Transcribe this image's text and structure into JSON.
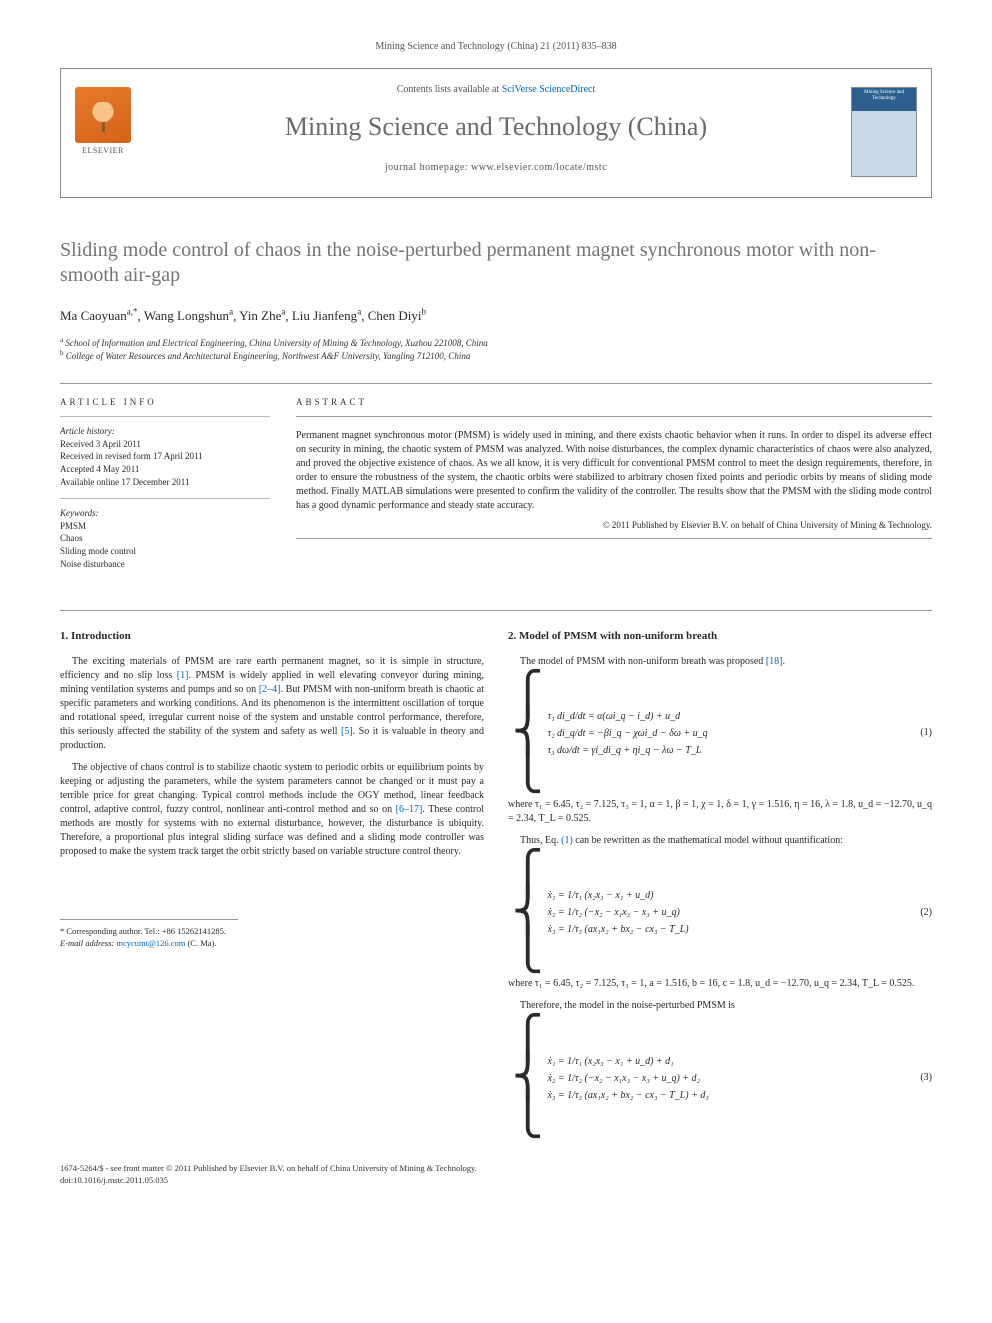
{
  "journal_ref": "Mining Science and Technology (China) 21 (2011) 835–838",
  "header": {
    "contents_line_pre": "Contents lists available at ",
    "contents_link": "SciVerse ScienceDirect",
    "journal_title": "Mining Science and Technology (China)",
    "homepage_pre": "journal homepage: ",
    "homepage_url": "www.elsevier.com/locate/mstc",
    "publisher_label": "ELSEVIER",
    "cover_label": "Mining Science and Technology"
  },
  "article": {
    "title": "Sliding mode control of chaos in the noise-perturbed permanent magnet synchronous motor with non-smooth air-gap",
    "authors_html": "Ma Caoyuan",
    "authors": [
      {
        "name": "Ma Caoyuan",
        "sup": "a,*"
      },
      {
        "name": "Wang Longshun",
        "sup": "a"
      },
      {
        "name": "Yin Zhe",
        "sup": "a"
      },
      {
        "name": "Liu Jianfeng",
        "sup": "a"
      },
      {
        "name": "Chen Diyi",
        "sup": "b"
      }
    ],
    "affiliations": [
      {
        "sup": "a",
        "text": "School of Information and Electrical Engineering, China University of Mining & Technology, Xuzhou 221008, China"
      },
      {
        "sup": "b",
        "text": "College of Water Resources and Architectural Engineering, Northwest A&F University, Yangling 712100, China"
      }
    ]
  },
  "info": {
    "label": "ARTICLE INFO",
    "history_label": "Article history:",
    "history": [
      "Received 3 April 2011",
      "Received in revised form 17 April 2011",
      "Accepted 4 May 2011",
      "Available online 17 December 2011"
    ],
    "keywords_label": "Keywords:",
    "keywords": [
      "PMSM",
      "Chaos",
      "Sliding mode control",
      "Noise disturbance"
    ]
  },
  "abstract": {
    "label": "ABSTRACT",
    "text": "Permanent magnet synchronous motor (PMSM) is widely used in mining, and there exists chaotic behavior when it runs. In order to dispel its adverse effect on security in mining, the chaotic system of PMSM was analyzed. With noise disturbances, the complex dynamic characteristics of chaos were also analyzed, and proved the objective existence of chaos. As we all know, it is very difficult for conventional PMSM control to meet the design requirements, therefore, in order to ensure the robustness of the system, the chaotic orbits were stabilized to arbitrary chosen fixed points and periodic orbits by means of sliding mode method. Finally MATLAB simulations were presented to confirm the validity of the controller. The results show that the PMSM with the sliding mode control has a good dynamic performance and steady state accuracy.",
    "copyright": "© 2011 Published by Elsevier B.V. on behalf of China University of Mining & Technology."
  },
  "body": {
    "intro_heading": "1. Introduction",
    "intro_p1": "The exciting materials of PMSM are rare earth permanent magnet, so it is simple in structure, efficiency and no slip loss [1]. PMSM is widely applied in well elevating conveyor during mining, mining ventilation systems and pumps and so on [2–4]. But PMSM with non-uniform breath is chaotic at specific parameters and working conditions. And its phenomenon is the intermittent oscillation of torque and rotational speed, irregular current noise of the system and unstable control performance, therefore, this seriously affected the stability of the system and safety as well [5]. So it is valuable in theory and production.",
    "intro_p2": "The objective of chaos control is to stabilize chaotic system to periodic orbits or equilibrium points by keeping or adjusting the parameters, while the system parameters cannot be changed or it must pay a terrible price for great changing. Typical control methods include the OGY method, linear feedback control, adaptive control, fuzzy control, nonlinear anti-control method and so on [6–17]. These control methods are mostly for systems with no external disturbance, however, the disturbance is ubiquity. Therefore, a proportional plus integral sliding surface was defined and a sliding mode controller was proposed to make the system track target the orbit strictly based on variable structure control theory.",
    "model_heading": "2. Model of PMSM with non-uniform breath",
    "model_p1": "The model of PMSM with non-uniform breath was proposed [18].",
    "eq1": {
      "l1": "τ₁ di_d/dt = α(ωi_q − i_d) + u_d",
      "l2": "τ₂ di_q/dt = −βi_q − χωi_d − δω + u_q",
      "l3": "τ₃ dω/dt = γi_di_q + ηi_q − λω − T_L",
      "num": "(1)"
    },
    "eq1_params": "where τ₁ = 6.45, τ₂ = 7.125, τ₃ = 1, α = 1, β = 1, χ = 1, δ = 1, γ = 1.516, η = 16, λ = 1.8, u_d = −12.70, u_q = 2.34, T_L = 0.525.",
    "model_p2": "Thus, Eq. (1) can be rewritten as the mathematical model without quantification:",
    "eq2": {
      "l1": "ẋ₁ = 1/τ₁ (x₂x₃ − x₁ + u_d)",
      "l2": "ẋ₂ = 1/τ₂ (−x₂ − x₁x₃ − x₃ + u_q)",
      "l3": "ẋ₃ = 1/τ₃ (ax₁x₂ + bx₂ − cx₃ − T_L)",
      "num": "(2)"
    },
    "eq2_params": "where   τ₁ = 6.45,   τ₂ = 7.125,   τ₃ = 1,   a = 1.516,   b = 16,   c = 1.8, u_d = −12.70, u_q = 2.34, T_L = 0.525.",
    "model_p3": "Therefore, the model in the noise-perturbed PMSM is",
    "eq3": {
      "l1": "ẋ₁ = 1/τ₁ (x₂x₃ − x₁ + u_d) + d₁",
      "l2": "ẋ₂ = 1/τ₂ (−x₂ − x₁x₃ − x₃ + u_q) + d₂",
      "l3": "ẋ₃ = 1/τ₃ (ax₁x₂ + bx₂ − cx₃ − T_L) + d₃",
      "num": "(3)"
    },
    "refs": {
      "r1": "[1]",
      "r24": "[2–4]",
      "r5": "[5]",
      "r617": "[6–17]",
      "r18": "[18]",
      "eq1": "(1)"
    }
  },
  "corresponding": {
    "star": "*",
    "label": "Corresponding author. Tel.: +86 15262141285.",
    "email_label": "E-mail address: ",
    "email": "mcycumt@126.com",
    "email_suffix": " (C. Ma)."
  },
  "footer": {
    "line1": "1674-5264/$ - see front matter © 2011 Published by Elsevier B.V. on behalf of China University of Mining & Technology.",
    "line2": "doi:10.1016/j.mstc.2011.05.035"
  },
  "colors": {
    "link": "#0066bb",
    "title_gray": "#747474",
    "rule": "#999999"
  }
}
